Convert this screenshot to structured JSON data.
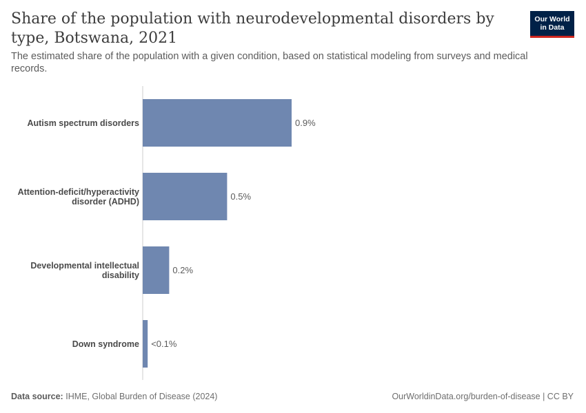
{
  "header": {
    "title": "Share of the population with neurodevelopmental disorders by type, Botswana, 2021",
    "subtitle": "The estimated share of the population with a given condition, based on statistical modeling from surveys and medical records."
  },
  "logo": {
    "line1": "Our World",
    "line2": "in Data"
  },
  "footer": {
    "source_label": "Data source:",
    "source_text": "IHME, Global Burden of Disease (2024)",
    "right_text": "OurWorldinData.org/burden-of-disease | CC BY"
  },
  "colors": {
    "bar": "#6f87b0",
    "axis": "#cccccc",
    "logo_bg": "#002147",
    "logo_accent": "#ce261e"
  },
  "chart_data": {
    "type": "bar",
    "orientation": "horizontal",
    "title": "Share of the population with neurodevelopmental disorders by type, Botswana, 2021",
    "unit": "%",
    "xlim": [
      0,
      0.9
    ],
    "categories": [
      [
        "Autism spectrum disorders"
      ],
      [
        "Attention-deficit/hyperactivity",
        "disorder (ADHD)"
      ],
      [
        "Developmental intellectual",
        "disability"
      ],
      [
        "Down syndrome"
      ]
    ],
    "values": [
      0.9,
      0.51,
      0.16,
      0.03
    ],
    "value_labels": [
      "0.9%",
      "0.5%",
      "0.2%",
      "<0.1%"
    ]
  }
}
